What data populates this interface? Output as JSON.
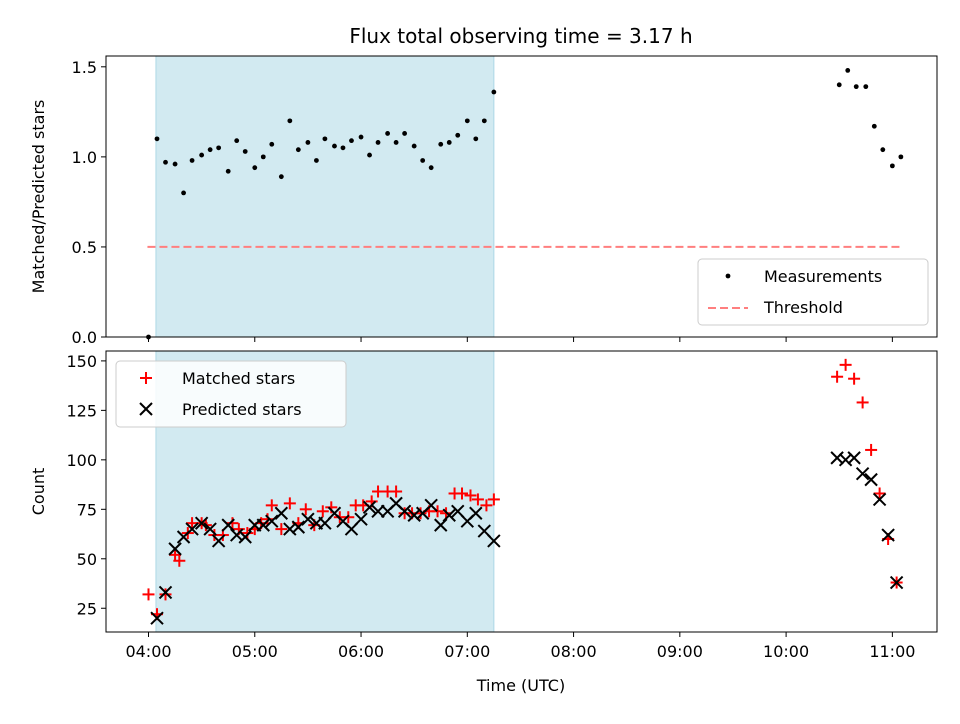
{
  "figure": {
    "title": "Flux total observing time = 3.17 h",
    "xlabel": "Time (UTC)",
    "x_ticks": [
      "04:00",
      "05:00",
      "06:00",
      "07:00",
      "08:00",
      "09:00",
      "10:00",
      "11:00"
    ],
    "x_tick_hours": [
      4,
      5,
      6,
      7,
      8,
      9,
      10,
      11
    ],
    "xlim_hours": [
      3.6,
      11.42
    ],
    "shaded_span_hours": [
      4.07,
      7.25
    ],
    "colors": {
      "shade": "#add8e6",
      "matched": "#ff0000",
      "predicted": "#000000",
      "threshold": "#ff7f7f"
    }
  },
  "chart_data": [
    {
      "type": "scatter",
      "ylabel": "Matched/Predicted stars",
      "ylim": [
        0,
        1.56
      ],
      "y_ticks": [
        0.0,
        0.5,
        1.0,
        1.5
      ],
      "y_tick_labels": [
        "0.0",
        "0.5",
        "1.0",
        "1.5"
      ],
      "legend_position": "lower-right",
      "series": [
        {
          "name": "Measurements",
          "marker": "dot",
          "x": [
            4.0,
            4.08,
            4.16,
            4.25,
            4.33,
            4.41,
            4.5,
            4.58,
            4.66,
            4.75,
            4.83,
            4.91,
            5.0,
            5.08,
            5.16,
            5.25,
            5.33,
            5.41,
            5.5,
            5.58,
            5.66,
            5.75,
            5.83,
            5.91,
            6.0,
            6.08,
            6.16,
            6.25,
            6.33,
            6.41,
            6.5,
            6.58,
            6.66,
            6.75,
            6.83,
            6.91,
            7.0,
            7.08,
            7.16,
            7.25,
            10.5,
            10.58,
            10.66,
            10.75,
            10.83,
            10.91,
            11.0,
            11.08
          ],
          "y": [
            0.0,
            1.1,
            0.97,
            0.96,
            0.8,
            0.98,
            1.01,
            1.04,
            1.05,
            0.92,
            1.09,
            1.03,
            0.94,
            1.0,
            1.07,
            0.89,
            1.2,
            1.04,
            1.08,
            0.98,
            1.1,
            1.06,
            1.05,
            1.09,
            1.11,
            1.01,
            1.08,
            1.13,
            1.08,
            1.13,
            1.06,
            0.98,
            0.94,
            1.07,
            1.08,
            1.12,
            1.2,
            1.1,
            1.2,
            1.36,
            1.4,
            1.48,
            1.39,
            1.39,
            1.17,
            1.04,
            0.95,
            1.0
          ]
        },
        {
          "name": "Threshold",
          "marker": "dashed-line",
          "x": [
            3.99,
            11.1
          ],
          "y": [
            0.5,
            0.5
          ]
        }
      ]
    },
    {
      "type": "scatter",
      "ylabel": "Count",
      "ylim": [
        13,
        155
      ],
      "y_ticks": [
        25,
        50,
        75,
        100,
        125,
        150
      ],
      "y_tick_labels": [
        "25",
        "50",
        "75",
        "100",
        "125",
        "150"
      ],
      "legend_position": "top-left",
      "series": [
        {
          "name": "Matched stars",
          "marker": "plus",
          "x": [
            4.0,
            4.08,
            4.16,
            4.25,
            4.29,
            4.37,
            4.41,
            4.5,
            4.54,
            4.62,
            4.7,
            4.79,
            4.85,
            4.93,
            5.0,
            5.06,
            5.12,
            5.16,
            5.25,
            5.33,
            5.41,
            5.48,
            5.56,
            5.64,
            5.72,
            5.8,
            5.88,
            5.95,
            6.02,
            6.1,
            6.16,
            6.25,
            6.33,
            6.41,
            6.48,
            6.56,
            6.64,
            6.72,
            6.8,
            6.88,
            6.95,
            7.03,
            7.1,
            7.18,
            7.25,
            10.48,
            10.56,
            10.64,
            10.72,
            10.8,
            10.88,
            10.96,
            11.04
          ],
          "y": [
            32,
            22,
            32,
            52,
            49,
            63,
            68,
            68,
            67,
            62,
            62,
            68,
            65,
            63,
            65,
            68,
            70,
            77,
            65,
            78,
            68,
            75,
            67,
            74,
            76,
            71,
            71,
            77,
            77,
            79,
            84,
            84,
            84,
            73,
            73,
            73,
            74,
            74,
            73,
            83,
            83,
            82,
            80,
            77,
            80,
            142,
            148,
            141,
            129,
            105,
            83,
            60,
            38
          ]
        },
        {
          "name": "Predicted stars",
          "marker": "x",
          "x": [
            4.08,
            4.16,
            4.25,
            4.33,
            4.41,
            4.5,
            4.58,
            4.66,
            4.75,
            4.83,
            4.91,
            5.0,
            5.08,
            5.16,
            5.25,
            5.33,
            5.41,
            5.5,
            5.58,
            5.66,
            5.75,
            5.83,
            5.91,
            6.0,
            6.08,
            6.16,
            6.25,
            6.33,
            6.41,
            6.5,
            6.58,
            6.66,
            6.75,
            6.83,
            6.91,
            7.0,
            7.08,
            7.16,
            7.25,
            10.48,
            10.56,
            10.64,
            10.72,
            10.8,
            10.88,
            10.96,
            11.04
          ],
          "y": [
            20,
            33,
            55,
            61,
            65,
            68,
            65,
            59,
            67,
            62,
            61,
            67,
            67,
            69,
            73,
            65,
            66,
            70,
            68,
            68,
            73,
            69,
            65,
            70,
            76,
            74,
            74,
            78,
            74,
            72,
            73,
            77,
            67,
            72,
            74,
            69,
            73,
            64,
            59,
            101,
            100,
            101,
            93,
            90,
            80,
            62,
            38
          ]
        }
      ]
    }
  ]
}
